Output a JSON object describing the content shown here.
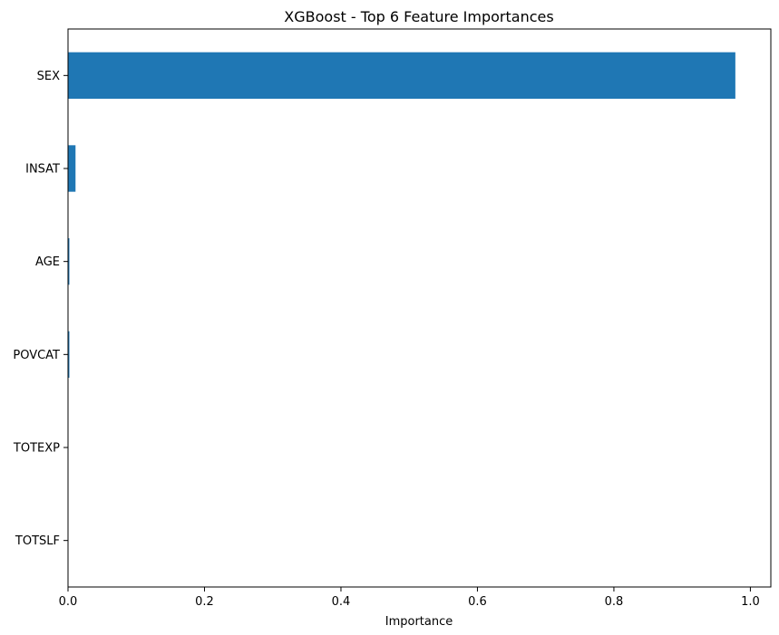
{
  "chart_data": {
    "type": "bar",
    "orientation": "horizontal",
    "title": "XGBoost - Top 6 Feature Importances",
    "xlabel": "Importance",
    "ylabel": "",
    "categories": [
      "SEX",
      "INSAT",
      "AGE",
      "POVCAT",
      "TOTEXP",
      "TOTSLF"
    ],
    "values": [
      0.978,
      0.011,
      0.002,
      0.002,
      0.0,
      0.0
    ],
    "xlim": [
      0,
      1.03
    ],
    "xticks": [
      0,
      0.2,
      0.4,
      0.6,
      0.8,
      1.0
    ],
    "xtick_labels": [
      "0.0",
      "0.2",
      "0.4",
      "0.6",
      "0.8",
      "1.0"
    ],
    "bar_color": "#1f77b4",
    "grid": false,
    "legend": "none"
  }
}
